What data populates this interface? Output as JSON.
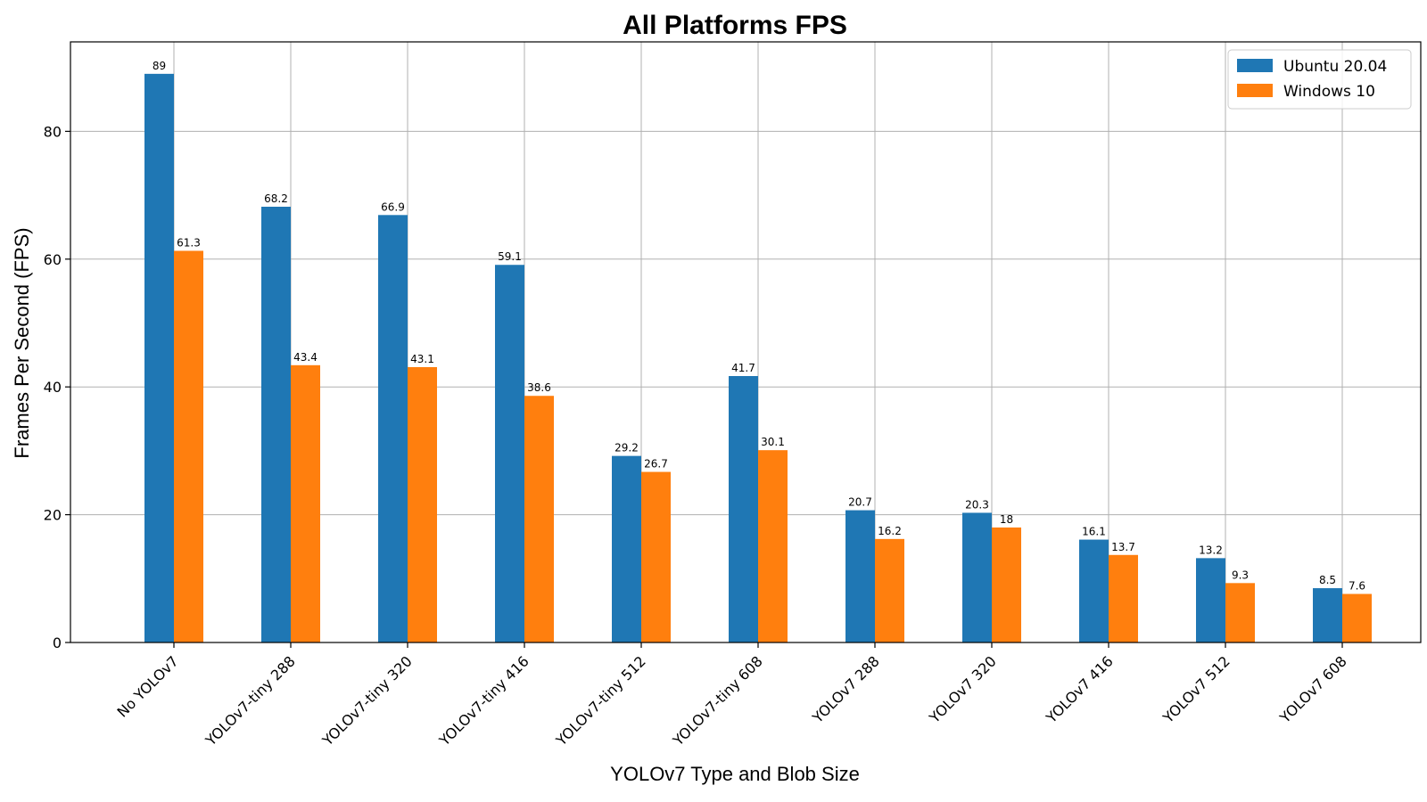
{
  "chart_data": {
    "type": "bar",
    "title": "All Platforms FPS",
    "xlabel": "YOLOv7 Type and Blob Size",
    "ylabel": "Frames Per Second (FPS)",
    "ylim": [
      0,
      94
    ],
    "yticks": [
      0,
      20,
      40,
      60,
      80
    ],
    "grid": true,
    "legend_position": "top-right",
    "categories": [
      "No YOLOv7",
      "YOLOv7-tiny 288",
      "YOLOv7-tiny 320",
      "YOLOv7-tiny 416",
      "YOLOv7-tiny 512",
      "YOLOv7-tiny 608",
      "YOLOv7 288",
      "YOLOv7 320",
      "YOLOv7 416",
      "YOLOv7 512",
      "YOLOv7 608"
    ],
    "series": [
      {
        "name": "Ubuntu 20.04",
        "color": "#1f77b4",
        "values": [
          89,
          68.2,
          66.9,
          59.1,
          29.2,
          41.7,
          20.7,
          20.3,
          16.1,
          13.2,
          8.5
        ],
        "labels": [
          "89",
          "68.2",
          "66.9",
          "59.1",
          "29.2",
          "41.7",
          "20.7",
          "20.3",
          "16.1",
          "13.2",
          "8.5"
        ]
      },
      {
        "name": "Windows 10",
        "color": "#ff7f0e",
        "values": [
          61.3,
          43.4,
          43.1,
          38.6,
          26.7,
          30.1,
          16.2,
          18,
          13.7,
          9.3,
          7.6
        ],
        "labels": [
          "61.3",
          "43.4",
          "43.1",
          "38.6",
          "26.7",
          "30.1",
          "16.2",
          "18",
          "13.7",
          "9.3",
          "7.6"
        ]
      }
    ]
  }
}
